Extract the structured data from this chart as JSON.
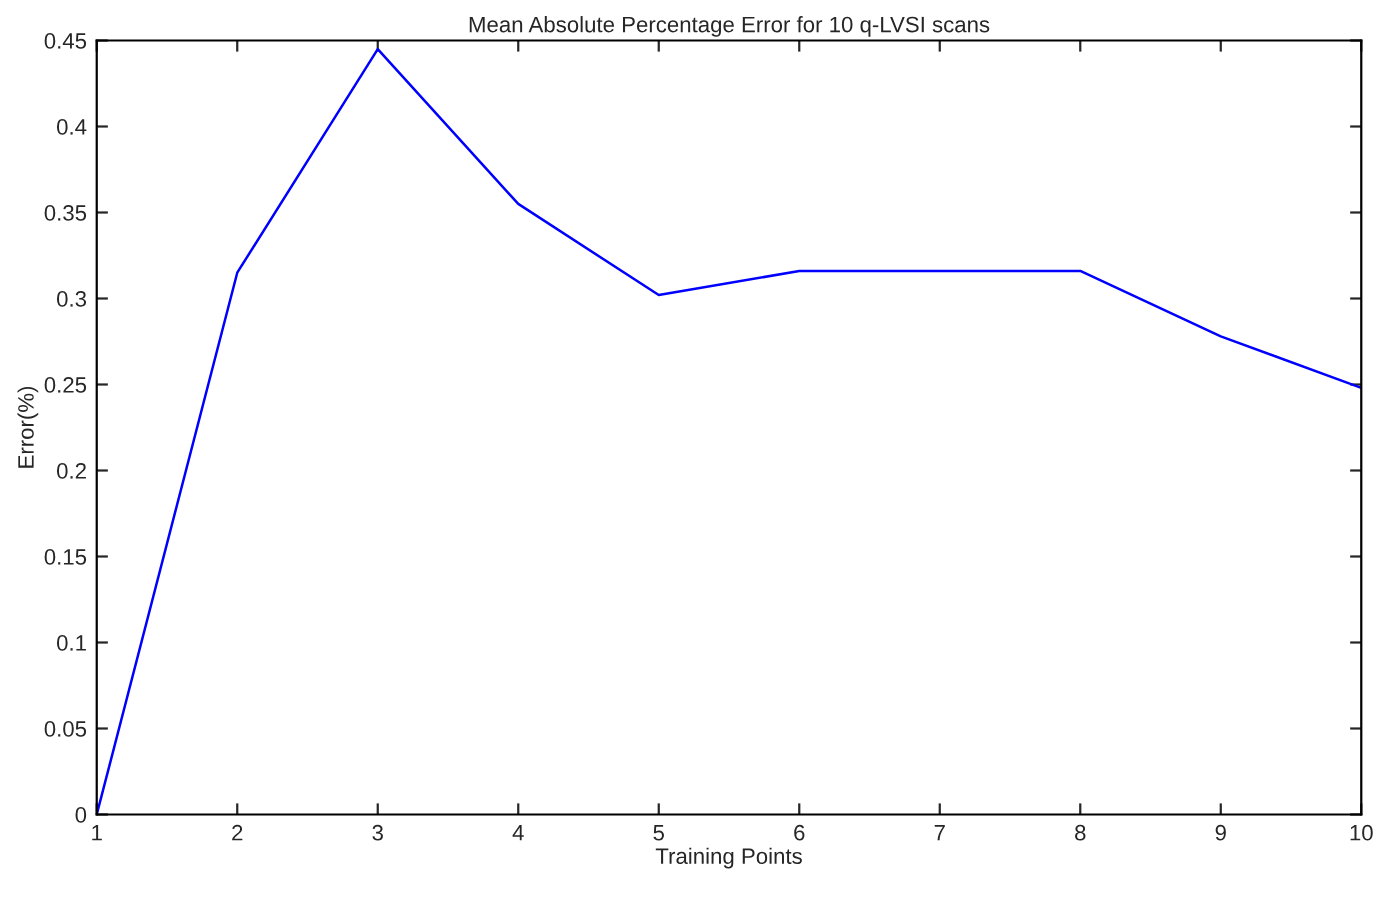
{
  "chart_data": {
    "type": "line",
    "title": "Mean Absolute Percentage Error for 10 q-LVSI scans",
    "xlabel": "Training Points",
    "ylabel": "Error(%)",
    "x": [
      1,
      2,
      3,
      4,
      5,
      6,
      7,
      8,
      9,
      10
    ],
    "series": [
      {
        "color": "#0000ff",
        "values": [
          0,
          0.315,
          0.445,
          0.355,
          0.302,
          0.316,
          0.316,
          0.316,
          0.278,
          0.248
        ]
      }
    ],
    "xlim": [
      1,
      10
    ],
    "xticks": [
      1,
      2,
      3,
      4,
      5,
      6,
      7,
      8,
      9,
      10
    ],
    "ylim": [
      0,
      0.45
    ],
    "yticks": [
      0,
      0.05,
      0.1,
      0.15,
      0.2,
      0.25,
      0.3,
      0.35,
      0.4,
      0.45
    ],
    "grid": false,
    "marker": "none",
    "line_style": "solid"
  }
}
